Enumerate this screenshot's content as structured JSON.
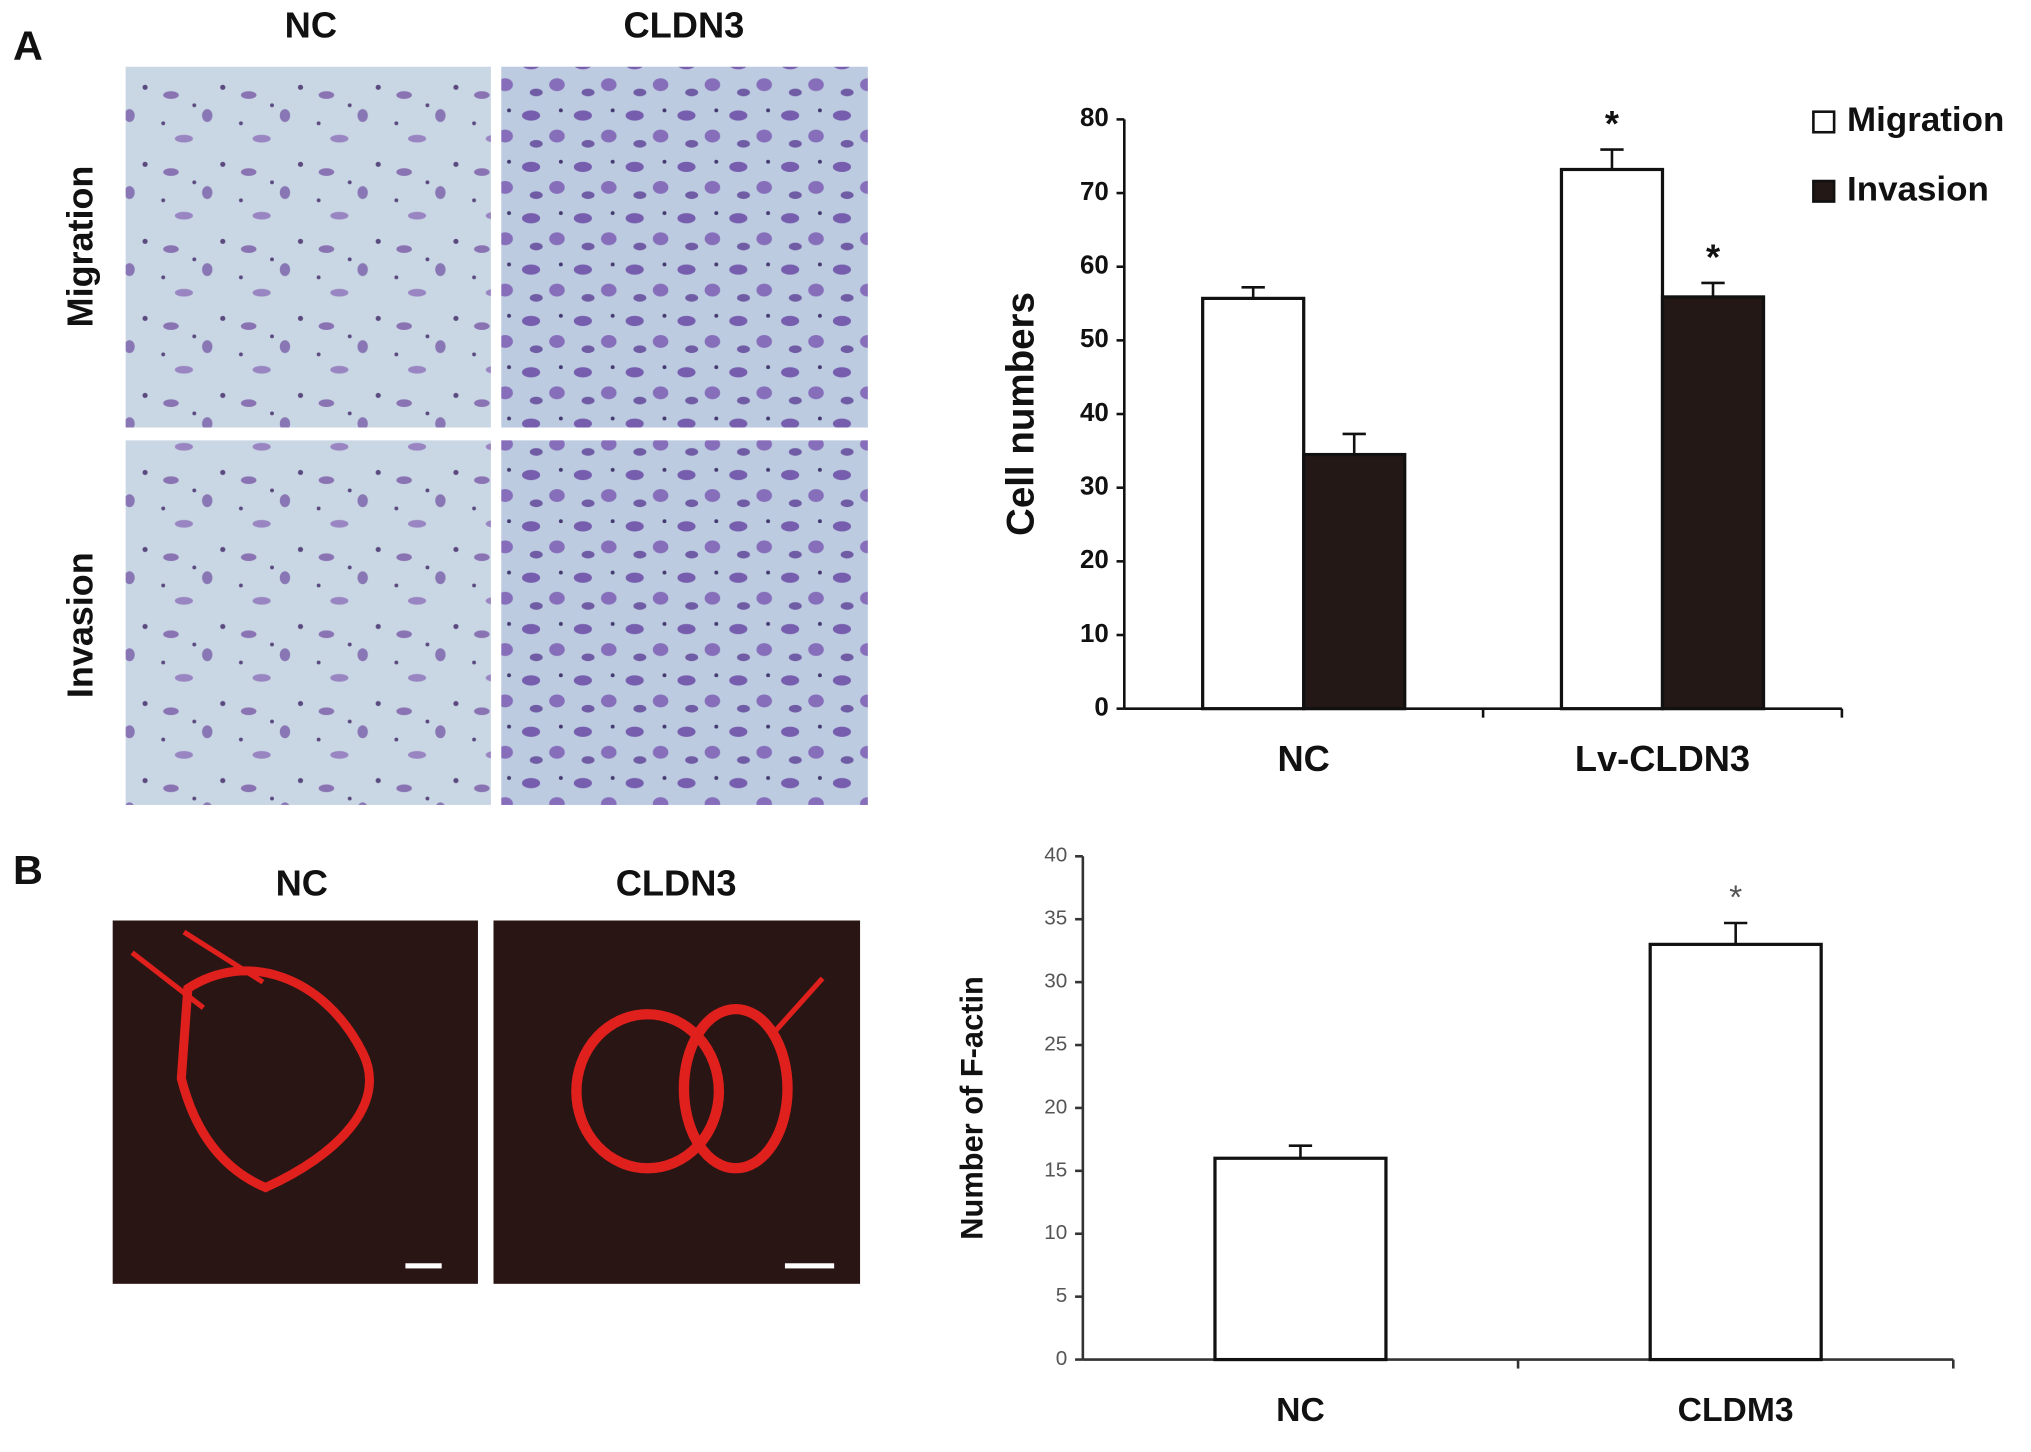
{
  "panels": [
    {
      "label": "A",
      "image_columns": [
        "NC",
        "CLDN3"
      ],
      "image_rows": [
        "Migration",
        "Invasion"
      ]
    },
    {
      "label": "B",
      "image_columns": [
        "NC",
        "CLDN3"
      ]
    }
  ],
  "chart_data": [
    {
      "type": "bar",
      "y_label": "Cell numbers",
      "categories": [
        "NC",
        "Lv-CLDN3"
      ],
      "series": [
        {
          "name": "Migration",
          "color": "#ffffff",
          "values": [
            55.7,
            73.2
          ],
          "errors": [
            1.5,
            2.7
          ],
          "markers": [
            null,
            "*"
          ]
        },
        {
          "name": "Invasion",
          "color": "#231815",
          "values": [
            34.5,
            55.9
          ],
          "errors": [
            2.8,
            1.9
          ],
          "markers": [
            null,
            "*"
          ]
        }
      ],
      "ylim": [
        0,
        80
      ],
      "yticks": [
        0,
        10,
        20,
        30,
        40,
        50,
        60,
        70,
        80
      ],
      "legend": "top-right",
      "grid": false
    },
    {
      "type": "bar",
      "y_label": "Number of F-actin",
      "categories": [
        "NC",
        "CLDM3"
      ],
      "values": [
        16,
        33
      ],
      "errors": [
        1,
        1.7
      ],
      "markers": [
        null,
        "*"
      ],
      "color": "#ffffff",
      "ylim": [
        0,
        40
      ],
      "yticks": [
        0,
        5,
        10,
        15,
        20,
        25,
        30,
        35,
        40
      ],
      "grid": false
    }
  ]
}
